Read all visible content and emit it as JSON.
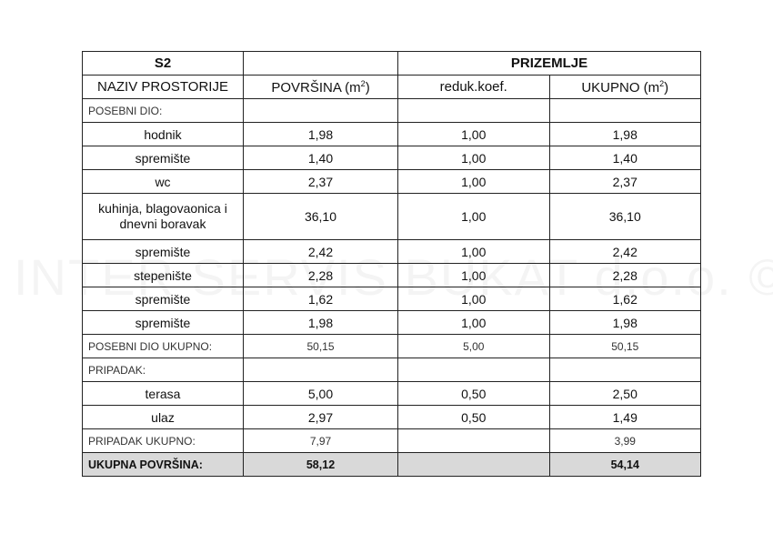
{
  "watermark": "INTER SERVIS BUKAT d.o.o. ©",
  "header": {
    "unit": "S2",
    "floor": "PRIZEMLJE"
  },
  "columns": {
    "name": "NAZIV PROSTORIJE",
    "area": "POVRŠINA (m²)",
    "coef": "reduk.koef.",
    "total": "UKUPNO (m²)"
  },
  "sections": {
    "posebni": {
      "label": "POSEBNI DIO:",
      "total_label": "POSEBNI DIO UKUPNO:",
      "total_area": "50,15",
      "total_coef": "5,00",
      "total_total": "50,15",
      "rows": [
        {
          "name": "hodnik",
          "area": "1,98",
          "coef": "1,00",
          "total": "1,98"
        },
        {
          "name": "spremište",
          "area": "1,40",
          "coef": "1,00",
          "total": "1,40"
        },
        {
          "name": "wc",
          "area": "2,37",
          "coef": "1,00",
          "total": "2,37"
        },
        {
          "name": "kuhinja, blagovaonica i dnevni boravak",
          "area": "36,10",
          "coef": "1,00",
          "total": "36,10"
        },
        {
          "name": "spremište",
          "area": "2,42",
          "coef": "1,00",
          "total": "2,42"
        },
        {
          "name": "stepenište",
          "area": "2,28",
          "coef": "1,00",
          "total": "2,28"
        },
        {
          "name": "spremište",
          "area": "1,62",
          "coef": "1,00",
          "total": "1,62"
        },
        {
          "name": "spremište",
          "area": "1,98",
          "coef": "1,00",
          "total": "1,98"
        }
      ]
    },
    "pripadak": {
      "label": "PRIPADAK:",
      "total_label": "PRIPADAK UKUPNO:",
      "total_area": "7,97",
      "total_total": "3,99",
      "rows": [
        {
          "name": "terasa",
          "area": "5,00",
          "coef": "0,50",
          "total": "2,50"
        },
        {
          "name": "ulaz",
          "area": "2,97",
          "coef": "0,50",
          "total": "1,49"
        }
      ]
    }
  },
  "grand_total": {
    "label": "UKUPNA POVRŠINA:",
    "area": "58,12",
    "total": "54,14"
  }
}
